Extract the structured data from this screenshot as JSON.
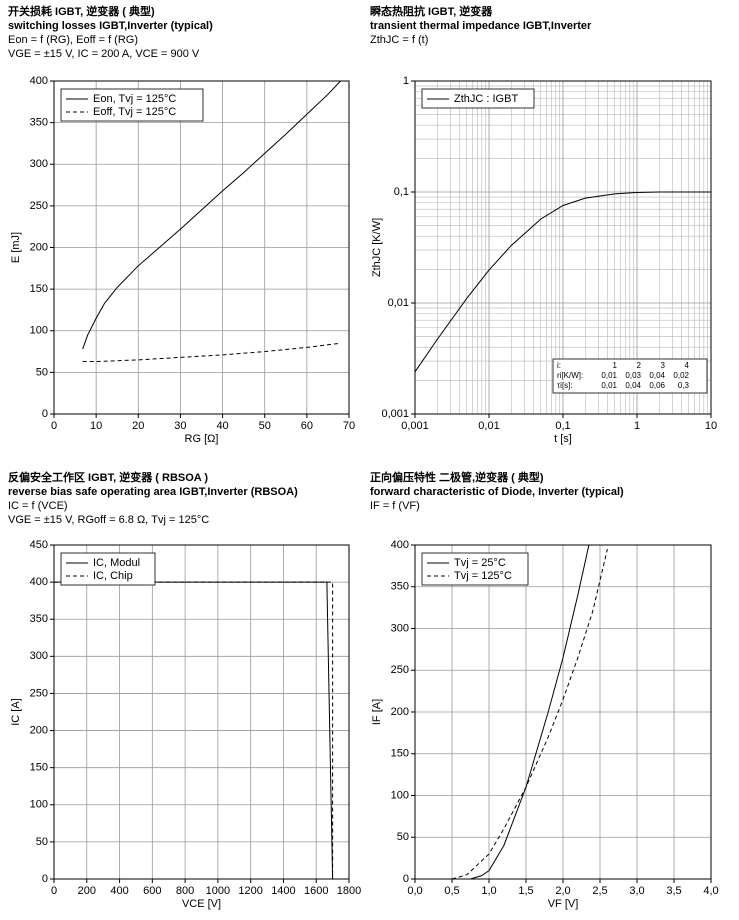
{
  "chart_data": [
    {
      "type": "line",
      "title_lines": [
        "开关损耗 IGBT, 逆变器 ( 典型)",
        "switching losses  IGBT,Inverter (typical)",
        "Eon = f (RG), Eoff = f (RG)",
        "VGE = ±15 V, IC = 200 A, VCE = 900 V"
      ],
      "x_label": "RG [Ω]",
      "y_label": "E [mJ]",
      "xlim": [
        0,
        70
      ],
      "xticks": [
        0,
        10,
        20,
        30,
        40,
        50,
        60,
        70
      ],
      "ylim": [
        0,
        400
      ],
      "yticks": [
        0,
        50,
        100,
        150,
        200,
        250,
        300,
        350,
        400
      ],
      "grid": true,
      "legend": "upper left",
      "series": [
        {
          "name": "Eon, Tvj = 125°C",
          "color": "#000000",
          "line_style": "solid",
          "x": [
            6.8,
            8,
            10,
            12,
            15,
            20,
            25,
            30,
            35,
            40,
            45,
            50,
            55,
            60,
            65,
            68
          ],
          "values": [
            78,
            95,
            115,
            133,
            152,
            178,
            200,
            222,
            245,
            268,
            290,
            313,
            336,
            360,
            384,
            400
          ]
        },
        {
          "name": "Eoff, Tvj = 125°C",
          "color": "#000000",
          "line_style": "dashed",
          "x": [
            6.8,
            10,
            20,
            30,
            40,
            50,
            60,
            68
          ],
          "values": [
            63,
            63,
            65,
            68,
            71,
            75,
            80,
            85
          ]
        }
      ]
    },
    {
      "type": "line",
      "title_lines": [
        "瞬态热阻抗 IGBT, 逆变器",
        "transient thermal impedance  IGBT,Inverter",
        "ZthJC = f (t)"
      ],
      "x_label": "t [s]",
      "y_label": "ZthJC [K/W]",
      "x_log": true,
      "y_log": true,
      "grid": true,
      "minor_grid": true,
      "legend": "upper left",
      "xlim": [
        0.001,
        10
      ],
      "xticks": [
        {
          "value": 0.001,
          "label": "0,001"
        },
        {
          "value": 0.01,
          "label": "0,01"
        },
        {
          "value": 0.1,
          "label": "0,1"
        },
        1,
        10
      ],
      "ylim": [
        0.001,
        1
      ],
      "yticks": [
        {
          "value": 0.001,
          "label": "0,001"
        },
        {
          "value": 0.01,
          "label": "0,01"
        },
        {
          "value": 0.1,
          "label": "0,1"
        },
        1
      ],
      "series": [
        {
          "name": "ZthJC : IGBT",
          "color": "#000000",
          "line_style": "solid",
          "x": [
            0.001,
            0.002,
            0.005,
            0.01,
            0.02,
            0.05,
            0.1,
            0.2,
            0.5,
            1,
            2,
            5,
            10
          ],
          "values": [
            0.0024,
            0.0047,
            0.011,
            0.0198,
            0.033,
            0.057,
            0.0756,
            0.088,
            0.0962,
            0.099,
            0.1,
            0.1,
            0.1
          ]
        }
      ],
      "table": {
        "header": [
          "i:",
          "1",
          "2",
          "3",
          "4"
        ],
        "rows": [
          [
            "ri[K/W]:",
            "0,01",
            "0,03",
            "0,04",
            "0,02"
          ],
          [
            "τi[s]:",
            "0,01",
            "0,04",
            "0,06",
            "0,3"
          ]
        ]
      }
    },
    {
      "type": "line",
      "title_lines": [
        "反偏安全工作区 IGBT, 逆变器 ( RBSOA )",
        "reverse bias safe operating area  IGBT,Inverter (RBSOA)",
        "IC = f (VCE)",
        "VGE = ±15 V, RGoff = 6.8 Ω, Tvj = 125°C"
      ],
      "x_label": "VCE [V]",
      "y_label": "IC [A]",
      "xlim": [
        0,
        1800
      ],
      "xticks": [
        0,
        200,
        400,
        600,
        800,
        1000,
        1200,
        1400,
        1600,
        1800
      ],
      "ylim": [
        0,
        450
      ],
      "yticks": [
        0,
        50,
        100,
        150,
        200,
        250,
        300,
        350,
        400,
        450
      ],
      "grid": true,
      "legend": "upper left",
      "series": [
        {
          "name": "IC, Modul",
          "color": "#000000",
          "line_style": "solid",
          "x": [
            0,
            1665,
            1700
          ],
          "values": [
            400,
            400,
            0
          ]
        },
        {
          "name": "IC, Chip",
          "color": "#000000",
          "line_style": "dashed",
          "x": [
            0,
            1700,
            1700
          ],
          "values": [
            400,
            400,
            0
          ]
        }
      ]
    },
    {
      "type": "line",
      "title_lines": [
        "正向偏压特性  二极管,逆变器 ( 典型)",
        "forward characteristic of  Diode, Inverter (typical)",
        "IF = f (VF)"
      ],
      "x_label": "VF [V]",
      "y_label": "IF [A]",
      "xlim": [
        0,
        4
      ],
      "xticks": [
        {
          "value": 0,
          "label": "0,0"
        },
        {
          "value": 0.5,
          "label": "0,5"
        },
        {
          "value": 1,
          "label": "1,0"
        },
        {
          "value": 1.5,
          "label": "1,5"
        },
        {
          "value": 2,
          "label": "2,0"
        },
        {
          "value": 2.5,
          "label": "2,5"
        },
        {
          "value": 3,
          "label": "3,0"
        },
        {
          "value": 3.5,
          "label": "3,5"
        },
        {
          "value": 4,
          "label": "4,0"
        }
      ],
      "ylim": [
        0,
        400
      ],
      "yticks": [
        0,
        50,
        100,
        150,
        200,
        250,
        300,
        350,
        400
      ],
      "grid": true,
      "legend": "upper left",
      "series": [
        {
          "name": "Tvj = 25°C",
          "color": "#000000",
          "line_style": "solid",
          "x": [
            0.75,
            0.9,
            1.0,
            1.2,
            1.5,
            1.8,
            2.0,
            2.2,
            2.35
          ],
          "values": [
            0,
            4,
            10,
            40,
            110,
            200,
            265,
            340,
            400
          ]
        },
        {
          "name": "Tvj = 125°C",
          "color": "#000000",
          "line_style": "dashed",
          "x": [
            0.5,
            0.7,
            1.0,
            1.2,
            1.5,
            1.8,
            2.0,
            2.2,
            2.4,
            2.6
          ],
          "values": [
            0,
            5,
            30,
            60,
            110,
            170,
            215,
            265,
            320,
            395
          ]
        }
      ]
    }
  ]
}
